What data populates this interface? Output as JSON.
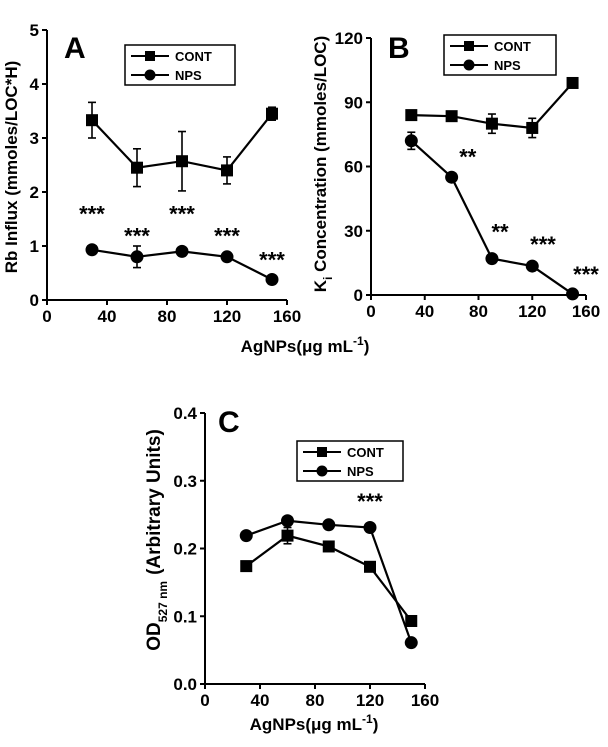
{
  "figure": {
    "xlabel_main": "AgNPs(μg mL",
    "xlabel_sup": "-1",
    "xlabel_end": ")"
  },
  "chart_data": [
    {
      "panel": "A",
      "type": "line",
      "ylabel": "Rb Influx (mmoles/LOC*H)",
      "xlim": [
        0,
        160
      ],
      "ylim": [
        0,
        5
      ],
      "xticks": [
        0,
        40,
        80,
        120,
        160
      ],
      "yticks": [
        0,
        1,
        2,
        3,
        4,
        5
      ],
      "legend": "top-right",
      "series": [
        {
          "name": "CONT",
          "marker": "square",
          "x": [
            30,
            60,
            90,
            120,
            150
          ],
          "y": [
            3.33,
            2.45,
            2.57,
            2.4,
            3.45
          ],
          "err": [
            0.33,
            0.35,
            0.55,
            0.25,
            0.12
          ]
        },
        {
          "name": "NPS",
          "marker": "circle",
          "x": [
            30,
            60,
            90,
            120,
            150
          ],
          "y": [
            0.93,
            0.8,
            0.9,
            0.8,
            0.38
          ],
          "err": [
            0.0,
            0.2,
            0.0,
            0.0,
            0.0
          ]
        }
      ],
      "annotations": [
        {
          "text": "***",
          "x": 30,
          "y": 1.45
        },
        {
          "text": "***",
          "x": 60,
          "y": 1.05
        },
        {
          "text": "***",
          "x": 90,
          "y": 1.45
        },
        {
          "text": "***",
          "x": 120,
          "y": 1.05
        },
        {
          "text": "***",
          "x": 150,
          "y": 0.6
        }
      ]
    },
    {
      "panel": "B",
      "type": "line",
      "ylabel_main": "K",
      "ylabel_sub": "i",
      "ylabel_rest": " Concentration (mmoles/LOC)",
      "xlim": [
        0,
        160
      ],
      "ylim": [
        0,
        120
      ],
      "xticks": [
        0,
        40,
        80,
        120,
        160
      ],
      "yticks": [
        0,
        30,
        60,
        90,
        120
      ],
      "legend": "top-right",
      "series": [
        {
          "name": "CONT",
          "marker": "square",
          "x": [
            30,
            60,
            90,
            120,
            150
          ],
          "y": [
            84,
            83.5,
            80,
            78,
            99
          ],
          "err": [
            0,
            0,
            4.5,
            4.5,
            0
          ]
        },
        {
          "name": "NPS",
          "marker": "circle",
          "x": [
            30,
            60,
            90,
            120,
            150
          ],
          "y": [
            72,
            55,
            17,
            13.5,
            0.5
          ],
          "err": [
            4,
            0,
            0,
            0,
            0
          ]
        }
      ],
      "annotations": [
        {
          "text": "**",
          "x": 72,
          "y": 61
        },
        {
          "text": "**",
          "x": 96,
          "y": 26
        },
        {
          "text": "***",
          "x": 128,
          "y": 20
        },
        {
          "text": "***",
          "x": 160,
          "y": 6
        }
      ]
    },
    {
      "panel": "C",
      "type": "line",
      "ylabel_main": "OD",
      "ylabel_sub": "527 nm",
      "ylabel_rest": "(Arbitrary Units)",
      "xlim": [
        0,
        160
      ],
      "ylim": [
        0,
        0.4
      ],
      "xticks": [
        0,
        40,
        80,
        120,
        160
      ],
      "yticks": [
        0.0,
        0.1,
        0.2,
        0.3,
        0.4
      ],
      "ytick_labels": [
        "0.0",
        "0.1",
        "0.2",
        "0.3",
        "0.4"
      ],
      "legend": "top-right",
      "series": [
        {
          "name": "CONT",
          "marker": "square",
          "x": [
            30,
            60,
            90,
            120,
            150
          ],
          "y": [
            0.174,
            0.219,
            0.203,
            0.173,
            0.093
          ],
          "err": [
            0,
            0.012,
            0,
            0,
            0
          ]
        },
        {
          "name": "NPS",
          "marker": "circle",
          "x": [
            30,
            60,
            90,
            120,
            150
          ],
          "y": [
            0.219,
            0.241,
            0.235,
            0.231,
            0.061
          ],
          "err": [
            0,
            0,
            0,
            0,
            0
          ]
        }
      ],
      "annotations": [
        {
          "text": "***",
          "x": 120,
          "y": 0.258
        }
      ]
    }
  ]
}
